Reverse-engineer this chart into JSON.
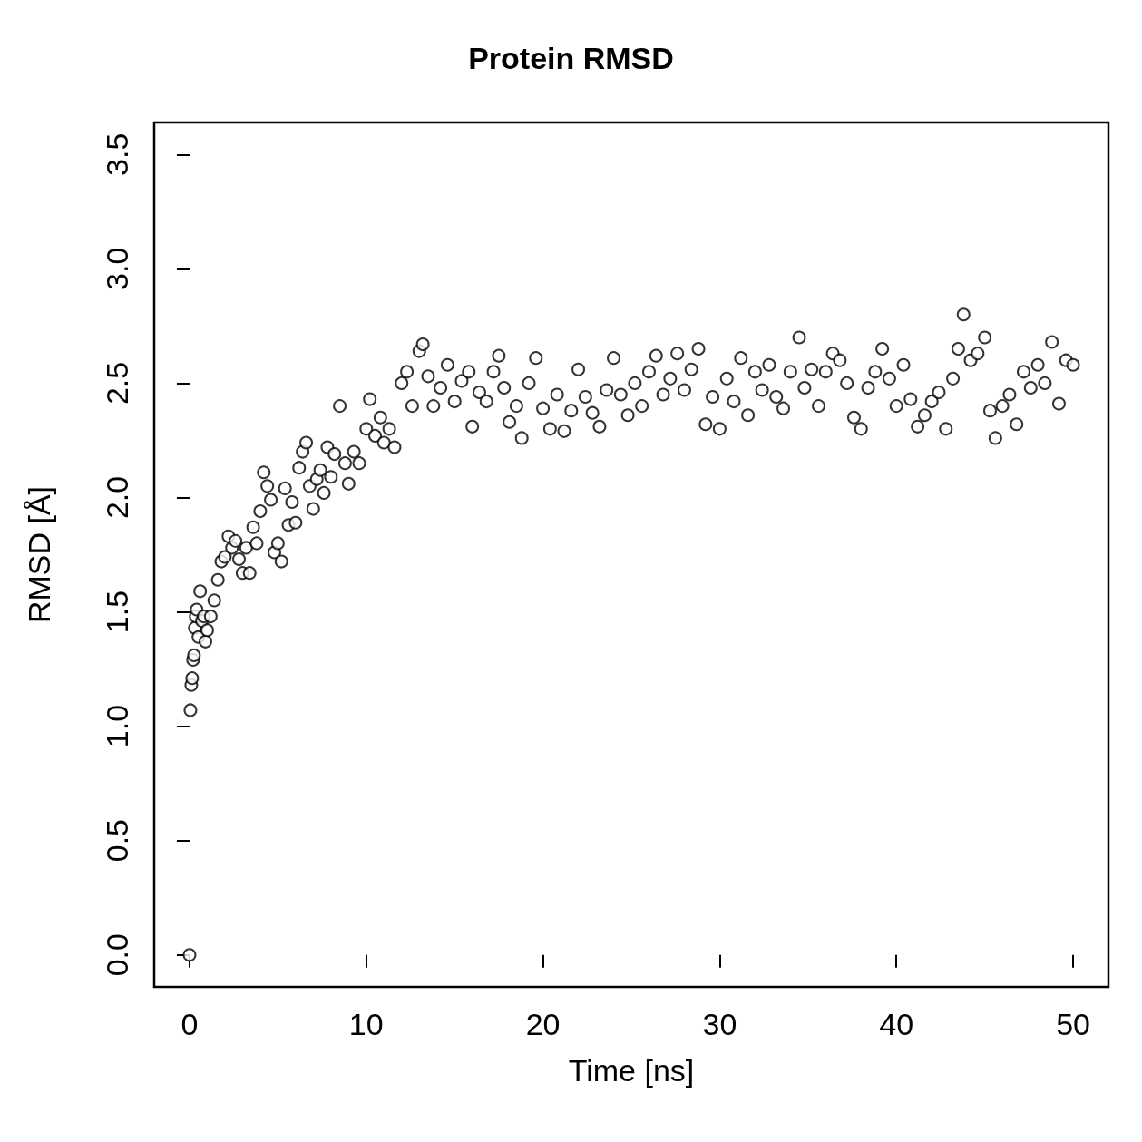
{
  "chart_data": {
    "type": "scatter",
    "title": "Protein RMSD",
    "xlabel": "Time [ns]",
    "ylabel": "RMSD [Å]",
    "marker": "circle",
    "color": "#000000",
    "xlim": [
      -2,
      52
    ],
    "ylim": [
      -0.14,
      3.64
    ],
    "xticks": [
      0,
      10,
      20,
      30,
      40,
      50
    ],
    "yticks": [
      {
        "value": 0,
        "label": "0.0"
      },
      {
        "value": 0.5,
        "label": "0.5"
      },
      {
        "value": 1,
        "label": "1.0"
      },
      {
        "value": 1.5,
        "label": "1.5"
      },
      {
        "value": 2,
        "label": "2.0"
      },
      {
        "value": 2.5,
        "label": "2.5"
      },
      {
        "value": 3,
        "label": "3.0"
      },
      {
        "value": 3.5,
        "label": "3.5"
      }
    ],
    "x": [
      0,
      0.05,
      0.1,
      0.15,
      0.2,
      0.25,
      0.3,
      0.35,
      0.4,
      0.5,
      0.6,
      0.7,
      0.8,
      0.9,
      1.0,
      1.2,
      1.4,
      1.6,
      1.8,
      2.0,
      2.2,
      2.4,
      2.6,
      2.8,
      3.0,
      3.2,
      3.4,
      3.6,
      3.8,
      4.0,
      4.2,
      4.4,
      4.6,
      4.8,
      5.0,
      5.2,
      5.4,
      5.6,
      5.8,
      6.0,
      6.2,
      6.4,
      6.6,
      6.8,
      7.0,
      7.2,
      7.4,
      7.6,
      7.8,
      8.0,
      8.2,
      8.5,
      8.8,
      9.0,
      9.3,
      9.6,
      10.0,
      10.2,
      10.5,
      10.8,
      11.0,
      11.3,
      11.6,
      12.0,
      12.3,
      12.6,
      13.0,
      13.2,
      13.5,
      13.8,
      14.2,
      14.6,
      15.0,
      15.4,
      15.8,
      16.0,
      16.4,
      16.8,
      17.2,
      17.5,
      17.8,
      18.1,
      18.5,
      18.8,
      19.2,
      19.6,
      20.0,
      20.4,
      20.8,
      21.2,
      21.6,
      22.0,
      22.4,
      22.8,
      23.2,
      23.6,
      24.0,
      24.4,
      24.8,
      25.2,
      25.6,
      26.0,
      26.4,
      26.8,
      27.2,
      27.6,
      28.0,
      28.4,
      28.8,
      29.2,
      29.6,
      30.0,
      30.4,
      30.8,
      31.2,
      31.6,
      32.0,
      32.4,
      32.8,
      33.2,
      33.6,
      34.0,
      34.5,
      34.8,
      35.2,
      35.6,
      36.0,
      36.4,
      36.8,
      37.2,
      37.6,
      38.0,
      38.4,
      38.8,
      39.2,
      39.6,
      40.0,
      40.4,
      40.8,
      41.2,
      41.6,
      42.0,
      42.4,
      42.8,
      43.2,
      43.5,
      43.8,
      44.2,
      44.6,
      45.0,
      45.3,
      45.6,
      46.0,
      46.4,
      46.8,
      47.2,
      47.6,
      48.0,
      48.4,
      48.8,
      49.2,
      49.6,
      50.0
    ],
    "values": [
      0,
      1.07,
      1.18,
      1.21,
      1.29,
      1.31,
      1.43,
      1.48,
      1.51,
      1.39,
      1.59,
      1.46,
      1.48,
      1.37,
      1.42,
      1.48,
      1.55,
      1.64,
      1.72,
      1.74,
      1.83,
      1.78,
      1.81,
      1.73,
      1.67,
      1.78,
      1.67,
      1.87,
      1.8,
      1.94,
      2.11,
      2.05,
      1.99,
      1.76,
      1.8,
      1.72,
      2.04,
      1.88,
      1.98,
      1.89,
      2.13,
      2.2,
      2.24,
      2.05,
      1.95,
      2.08,
      2.12,
      2.02,
      2.22,
      2.09,
      2.19,
      2.4,
      2.15,
      2.06,
      2.2,
      2.15,
      2.3,
      2.43,
      2.27,
      2.35,
      2.24,
      2.3,
      2.22,
      2.5,
      2.55,
      2.4,
      2.64,
      2.67,
      2.53,
      2.4,
      2.48,
      2.58,
      2.42,
      2.51,
      2.55,
      2.31,
      2.46,
      2.42,
      2.55,
      2.62,
      2.48,
      2.33,
      2.4,
      2.26,
      2.5,
      2.61,
      2.39,
      2.3,
      2.45,
      2.29,
      2.38,
      2.56,
      2.44,
      2.37,
      2.31,
      2.47,
      2.61,
      2.45,
      2.36,
      2.5,
      2.4,
      2.55,
      2.62,
      2.45,
      2.52,
      2.63,
      2.47,
      2.56,
      2.65,
      2.32,
      2.44,
      2.3,
      2.52,
      2.42,
      2.61,
      2.36,
      2.55,
      2.47,
      2.58,
      2.44,
      2.39,
      2.55,
      2.7,
      2.48,
      2.56,
      2.4,
      2.55,
      2.63,
      2.6,
      2.5,
      2.35,
      2.3,
      2.48,
      2.55,
      2.65,
      2.52,
      2.4,
      2.58,
      2.43,
      2.31,
      2.36,
      2.42,
      2.46,
      2.3,
      2.52,
      2.65,
      2.8,
      2.6,
      2.63,
      2.7,
      2.38,
      2.26,
      2.4,
      2.45,
      2.32,
      2.55,
      2.48,
      2.58,
      2.5,
      2.68,
      2.41,
      2.6,
      2.58
    ]
  }
}
